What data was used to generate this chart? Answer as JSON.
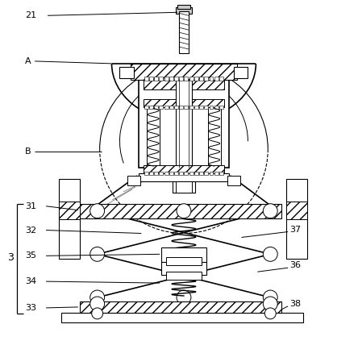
{
  "background_color": "#ffffff",
  "line_color": "#000000",
  "label_color": "#000000",
  "fig_w": 4.44,
  "fig_h": 4.28,
  "dpi": 100
}
